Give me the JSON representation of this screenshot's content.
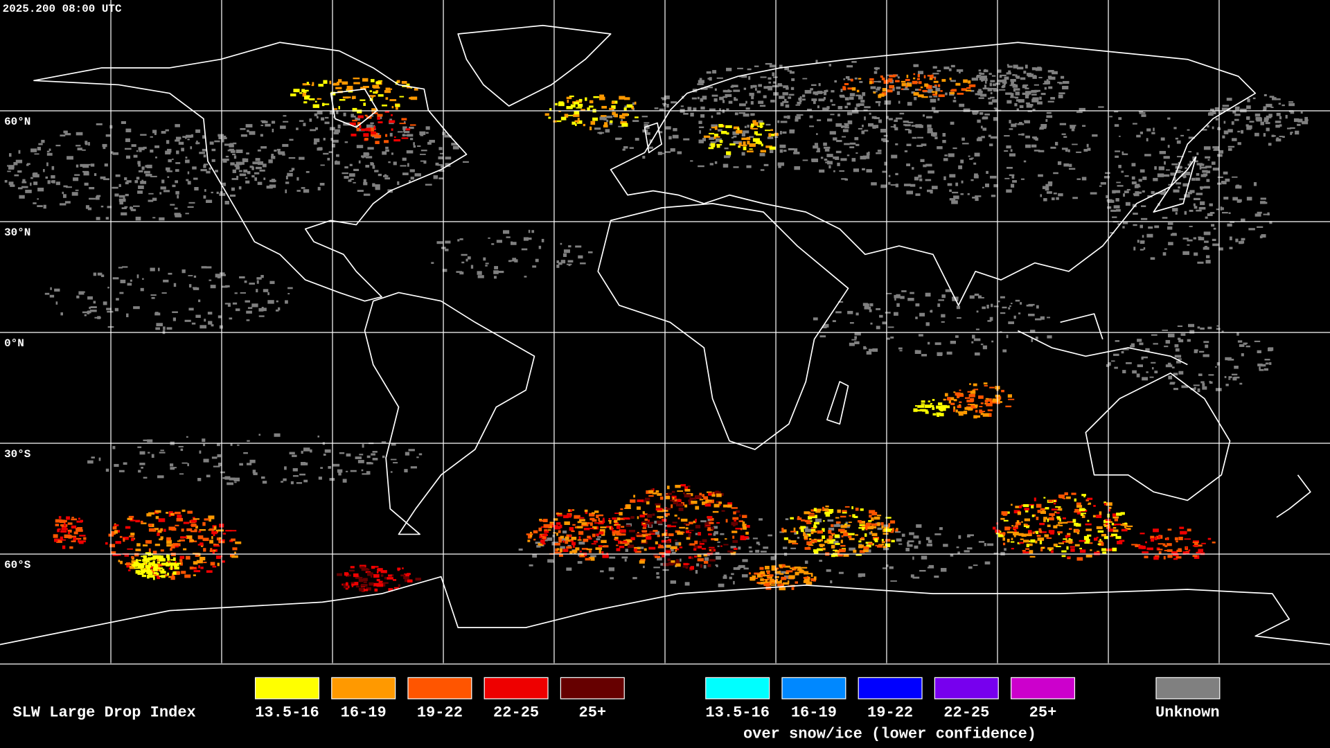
{
  "timestamp": "2025.200 08:00 UTC",
  "lat_labels": [
    "60°N",
    "30°N",
    "0°N",
    "30°S",
    "60°S"
  ],
  "legend": {
    "title": "SLW Large Drop Index",
    "groups": [
      {
        "items": [
          {
            "label": "13.5-16",
            "color": "#ffff00"
          },
          {
            "label": "16-19",
            "color": "#ff9900"
          },
          {
            "label": "19-22",
            "color": "#ff5500"
          },
          {
            "label": "22-25",
            "color": "#ee0000"
          },
          {
            "label": "25+",
            "color": "#660000"
          }
        ]
      },
      {
        "items": [
          {
            "label": "13.5-16",
            "color": "#00ffff"
          },
          {
            "label": "16-19",
            "color": "#0088ff"
          },
          {
            "label": "19-22",
            "color": "#0000ff"
          },
          {
            "label": "22-25",
            "color": "#7700ee"
          },
          {
            "label": "25+",
            "color": "#cc00cc"
          }
        ],
        "note": "over snow/ice (lower confidence)"
      }
    ],
    "unknown": {
      "label": "Unknown",
      "color": "#808080"
    }
  }
}
